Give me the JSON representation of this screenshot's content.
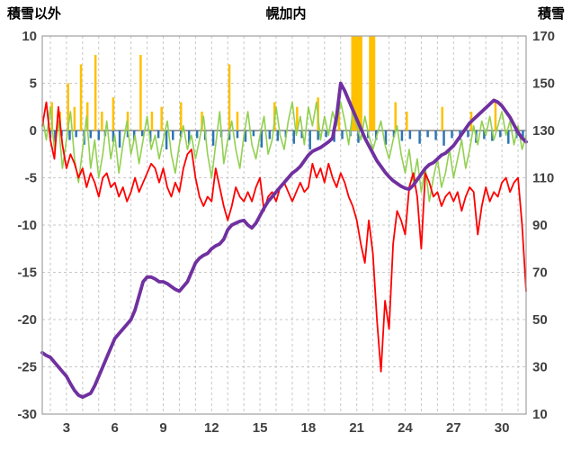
{
  "header": {
    "left_axis_title": "積雪以外",
    "chart_title": "幌加内",
    "right_axis_title": "積雪"
  },
  "chart_data": {
    "type": "line",
    "title": "幌加内",
    "x_axis": {
      "min": 1.5,
      "max": 31.5,
      "ticks": [
        3,
        6,
        9,
        12,
        15,
        18,
        21,
        24,
        27,
        30
      ]
    },
    "left_axis": {
      "title": "積雪以外",
      "min": -30,
      "max": 10,
      "ticks": [
        10,
        5,
        0,
        -5,
        -10,
        -15,
        -20,
        -25,
        -30
      ]
    },
    "right_axis": {
      "title": "積雪",
      "min": 10,
      "max": 170,
      "ticks": [
        170,
        150,
        130,
        110,
        90,
        70,
        50,
        30,
        10
      ]
    },
    "grid": {
      "line_color": "#C8C8C8",
      "zero_line_color": "#808080",
      "frame_color": "#A0A0A0",
      "label_color": "#404040"
    },
    "series": [
      {
        "name": "orange_bars",
        "type": "bar",
        "axis": "left",
        "color": "#FFC000",
        "points": [
          {
            "x": 2.1,
            "v": 3
          },
          {
            "x": 2.6,
            "v": 2
          },
          {
            "x": 3.1,
            "v": 5
          },
          {
            "x": 3.5,
            "v": 2.5
          },
          {
            "x": 3.9,
            "v": 7
          },
          {
            "x": 4.3,
            "v": 3
          },
          {
            "x": 4.8,
            "v": 8
          },
          {
            "x": 5.2,
            "v": 2
          },
          {
            "x": 5.9,
            "v": 3.5
          },
          {
            "x": 6.8,
            "v": 2
          },
          {
            "x": 7.6,
            "v": 8
          },
          {
            "x": 8.3,
            "v": 2
          },
          {
            "x": 8.9,
            "v": 2.5
          },
          {
            "x": 10.1,
            "v": 3
          },
          {
            "x": 11.4,
            "v": 2
          },
          {
            "x": 13.1,
            "v": 7
          },
          {
            "x": 13.6,
            "v": 2
          },
          {
            "x": 15.9,
            "v": 3
          },
          {
            "x": 17.3,
            "v": 2.5
          },
          {
            "x": 18.6,
            "v": 3.5
          },
          {
            "x": 19.9,
            "v": 2
          },
          {
            "x": 20.85,
            "v": 10,
            "w": 7
          },
          {
            "x": 21.15,
            "v": 10,
            "w": 7
          },
          {
            "x": 21.95,
            "v": 10,
            "w": 7
          },
          {
            "x": 23.4,
            "v": 3
          },
          {
            "x": 24.1,
            "v": 2
          },
          {
            "x": 26.3,
            "v": 2.5
          },
          {
            "x": 28.1,
            "v": 2
          },
          {
            "x": 29.6,
            "v": 3
          }
        ]
      },
      {
        "name": "blue_bars",
        "type": "bar",
        "axis": "left",
        "color": "#2E75B6",
        "points": [
          {
            "x": 2.0,
            "v": -0.8
          },
          {
            "x": 2.3,
            "v": -1.2
          },
          {
            "x": 2.7,
            "v": -0.6
          },
          {
            "x": 3.2,
            "v": -1.0
          },
          {
            "x": 3.6,
            "v": -0.7
          },
          {
            "x": 4.1,
            "v": -1.5
          },
          {
            "x": 4.5,
            "v": -0.8
          },
          {
            "x": 5.0,
            "v": -1.0
          },
          {
            "x": 5.4,
            "v": -0.6
          },
          {
            "x": 5.9,
            "v": -1.2
          },
          {
            "x": 6.3,
            "v": -1.8
          },
          {
            "x": 6.8,
            "v": -0.7
          },
          {
            "x": 7.2,
            "v": -1.0
          },
          {
            "x": 7.7,
            "v": -0.6
          },
          {
            "x": 8.2,
            "v": -1.2
          },
          {
            "x": 8.7,
            "v": -0.8
          },
          {
            "x": 9.2,
            "v": -2.0
          },
          {
            "x": 9.6,
            "v": -1.0
          },
          {
            "x": 10.1,
            "v": -0.7
          },
          {
            "x": 10.6,
            "v": -1.4
          },
          {
            "x": 11.1,
            "v": -0.8
          },
          {
            "x": 11.6,
            "v": -1.0
          },
          {
            "x": 12.1,
            "v": -1.6
          },
          {
            "x": 12.6,
            "v": -0.7
          },
          {
            "x": 13.1,
            "v": -1.0
          },
          {
            "x": 13.6,
            "v": -0.8
          },
          {
            "x": 14.1,
            "v": -1.2
          },
          {
            "x": 14.6,
            "v": -0.6
          },
          {
            "x": 15.1,
            "v": -1.8
          },
          {
            "x": 15.6,
            "v": -0.9
          },
          {
            "x": 16.1,
            "v": -1.1
          },
          {
            "x": 16.6,
            "v": -0.7
          },
          {
            "x": 17.1,
            "v": -1.4
          },
          {
            "x": 17.6,
            "v": -0.8
          },
          {
            "x": 18.1,
            "v": -2.0
          },
          {
            "x": 18.6,
            "v": -1.0
          },
          {
            "x": 19.1,
            "v": -0.7
          },
          {
            "x": 19.6,
            "v": -1.2
          },
          {
            "x": 20.1,
            "v": -0.9
          },
          {
            "x": 20.6,
            "v": -0.6
          },
          {
            "x": 21.1,
            "v": -1.3
          },
          {
            "x": 21.7,
            "v": -0.8
          },
          {
            "x": 22.2,
            "v": -1.0
          },
          {
            "x": 22.8,
            "v": -1.5
          },
          {
            "x": 23.3,
            "v": -0.7
          },
          {
            "x": 23.8,
            "v": -1.1
          },
          {
            "x": 24.3,
            "v": -0.9
          },
          {
            "x": 24.9,
            "v": -1.4
          },
          {
            "x": 25.4,
            "v": -0.7
          },
          {
            "x": 25.9,
            "v": -1.0
          },
          {
            "x": 26.4,
            "v": -1.6
          },
          {
            "x": 26.9,
            "v": -0.8
          },
          {
            "x": 27.4,
            "v": -1.0
          },
          {
            "x": 27.9,
            "v": -0.7
          },
          {
            "x": 28.4,
            "v": -1.3
          },
          {
            "x": 28.9,
            "v": -0.9
          },
          {
            "x": 29.4,
            "v": -1.1
          },
          {
            "x": 29.9,
            "v": -0.7
          },
          {
            "x": 30.4,
            "v": -1.4
          },
          {
            "x": 30.9,
            "v": -0.8
          },
          {
            "x": 31.3,
            "v": -1.0
          }
        ]
      },
      {
        "name": "green_line",
        "type": "line",
        "axis": "left",
        "color": "#92D050",
        "width": 1.6,
        "x_start": 1.5,
        "x_step": 0.25,
        "values": [
          1.5,
          -1,
          2.5,
          -2,
          1,
          -4,
          -1,
          2,
          -3,
          -5.5,
          -2,
          1.5,
          -4,
          -1,
          -5,
          -2.5,
          1,
          -3,
          -0.5,
          -4.5,
          -1.5,
          1,
          -2.5,
          -0.5,
          -3.5,
          -1,
          1.5,
          -2,
          -0.5,
          -3,
          -1,
          1,
          -2.5,
          -4.5,
          -1.5,
          0.5,
          -2,
          -0.5,
          -3,
          -1,
          1.5,
          -2.5,
          -5,
          -1.5,
          2,
          -3.5,
          -1,
          1,
          -2,
          -4,
          -0.5,
          2,
          -1.5,
          -3,
          -0.5,
          1.5,
          -2.5,
          -1,
          2.5,
          -0.5,
          -2,
          1,
          3,
          -0.5,
          1.5,
          -1.5,
          2.5,
          0.5,
          3,
          -1,
          1.5,
          -0.5,
          2,
          0.5,
          3,
          1,
          -1.5,
          2,
          0.5,
          -1,
          1.5,
          -0.5,
          -2,
          -0.5,
          1,
          -1.5,
          -3,
          -1,
          0.5,
          -2.5,
          -4.5,
          -2,
          -5.5,
          -3,
          -6.5,
          -4,
          -7.5,
          -5,
          -3,
          -6,
          -4.5,
          -2,
          -5,
          -3,
          -1,
          -4,
          -2,
          0.5,
          -1.5,
          1,
          -0.5,
          1.5,
          -1,
          0.5,
          2,
          -0.5,
          1,
          -1.5,
          0.5,
          -2,
          -0.5
        ]
      },
      {
        "name": "red_line",
        "type": "line",
        "axis": "left",
        "color": "#FF0000",
        "width": 1.8,
        "x_start": 1.5,
        "x_step": 0.25,
        "values": [
          0.5,
          3,
          -1,
          -3,
          2.5,
          -1.5,
          -4,
          -2.5,
          -3.5,
          -5,
          -4,
          -6,
          -4.5,
          -5.5,
          -7,
          -5,
          -4.5,
          -6,
          -5.5,
          -7,
          -6,
          -7.5,
          -6.5,
          -5,
          -6.5,
          -5.5,
          -4.5,
          -3.5,
          -4,
          -5.5,
          -4,
          -6,
          -7,
          -5.5,
          -6.5,
          -4,
          -2.5,
          -2,
          -5,
          -7,
          -8,
          -7,
          -7.5,
          -4,
          -6,
          -8,
          -9.5,
          -8,
          -6,
          -7,
          -7.5,
          -6.5,
          -7.5,
          -6,
          -5,
          -8.5,
          -7,
          -6.5,
          -7.5,
          -6,
          -5.5,
          -6.5,
          -7.5,
          -6.5,
          -5.5,
          -6.5,
          -6,
          -3.5,
          -5,
          -4,
          -5.5,
          -3.5,
          -5,
          -6,
          -4.5,
          -5.5,
          -7,
          -8,
          -9.5,
          -12,
          -14,
          -9.5,
          -13,
          -20,
          -25.5,
          -18,
          -21,
          -12,
          -8.5,
          -9.5,
          -11,
          -6,
          -4.5,
          -7,
          -12.5,
          -4.5,
          -5.5,
          -7,
          -6.5,
          -8,
          -7,
          -6.5,
          -7.5,
          -6.5,
          -8.5,
          -7,
          -6,
          -6.5,
          -11,
          -8,
          -6,
          -7.5,
          -6.5,
          -7,
          -5.5,
          -5,
          -6.5,
          -5.5,
          -5,
          -10,
          -17
        ]
      },
      {
        "name": "purple_thick_line",
        "type": "line",
        "axis": "right",
        "color": "#7030A0",
        "width": 3.8,
        "x_start": 1.5,
        "x_step": 0.25,
        "values": [
          36,
          34.8,
          34,
          32,
          30,
          28,
          26,
          22.8,
          20,
          18,
          17.2,
          18,
          18.8,
          22,
          26,
          30,
          34,
          38,
          42,
          44,
          46,
          48,
          50,
          54,
          60,
          66,
          68,
          68,
          67.2,
          66,
          66,
          65.2,
          64,
          62.8,
          62,
          64,
          66,
          70,
          74,
          76,
          77.2,
          78,
          80,
          81.2,
          82,
          84,
          88,
          90,
          90.8,
          91.6,
          92,
          90,
          88.8,
          90.8,
          94,
          97.2,
          100,
          102,
          104,
          106,
          108,
          110,
          112,
          113.2,
          114.8,
          117.2,
          119.6,
          121.2,
          122,
          122.8,
          124,
          125.2,
          126.8,
          136,
          150,
          146.8,
          142.8,
          138.8,
          134.8,
          130.8,
          126.8,
          123.6,
          120.4,
          117.2,
          114.8,
          112.4,
          110.4,
          108.8,
          107.6,
          106.4,
          105.6,
          105.2,
          106.8,
          109.2,
          111.6,
          114,
          115.6,
          116.4,
          118,
          119.6,
          120.4,
          122,
          123.6,
          126,
          128.4,
          130.8,
          133.2,
          134.8,
          136.4,
          138,
          139.6,
          141.2,
          142.8,
          142,
          140.4,
          138,
          135.6,
          132.4,
          129.2,
          126.8,
          125.2
        ]
      }
    ]
  }
}
